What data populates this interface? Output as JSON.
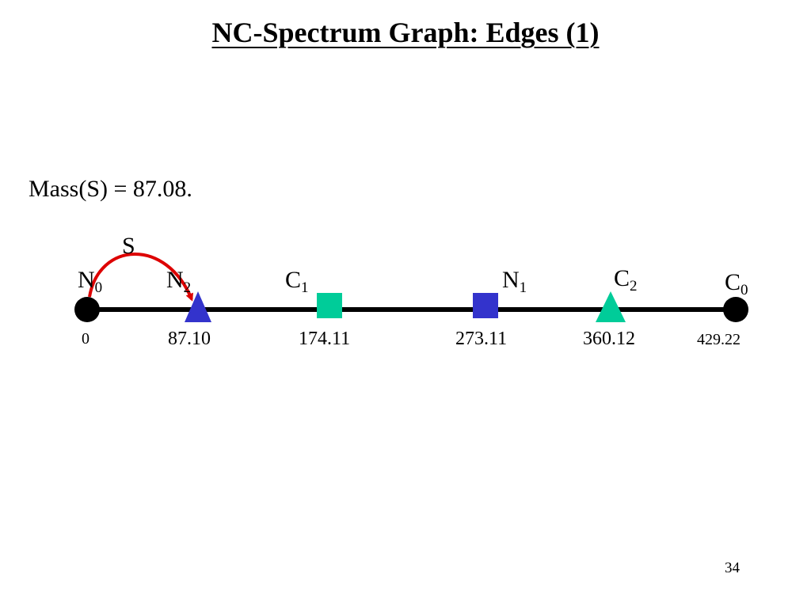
{
  "slide": {
    "title": "NC-Spectrum Graph: Edges (1)",
    "statement": "Mass(S) = 87.08.",
    "page_number": "34"
  },
  "colors": {
    "line": "#000000",
    "node_n_blue": "#3333cc",
    "node_c_green": "#00cc99",
    "edge_red": "#dd0000"
  },
  "diagram": {
    "edge": {
      "label": "S",
      "from": "N0",
      "to": "N2"
    },
    "nodes": [
      {
        "id": "N0",
        "base": "N",
        "sub": "0",
        "value": "0",
        "shape": "circle-icon"
      },
      {
        "id": "N2",
        "base": "N",
        "sub": "2",
        "value": "87.10",
        "shape": "triangle-icon"
      },
      {
        "id": "C1",
        "base": "C",
        "sub": "1",
        "value": "174.11",
        "shape": "square-icon"
      },
      {
        "id": "N1",
        "base": "N",
        "sub": "1",
        "value": "273.11",
        "shape": "square-icon"
      },
      {
        "id": "C2",
        "base": "C",
        "sub": "2",
        "value": "360.12",
        "shape": "triangle-icon"
      },
      {
        "id": "C0",
        "base": "C",
        "sub": "0",
        "value": "429.22",
        "shape": "circle-icon"
      }
    ]
  }
}
